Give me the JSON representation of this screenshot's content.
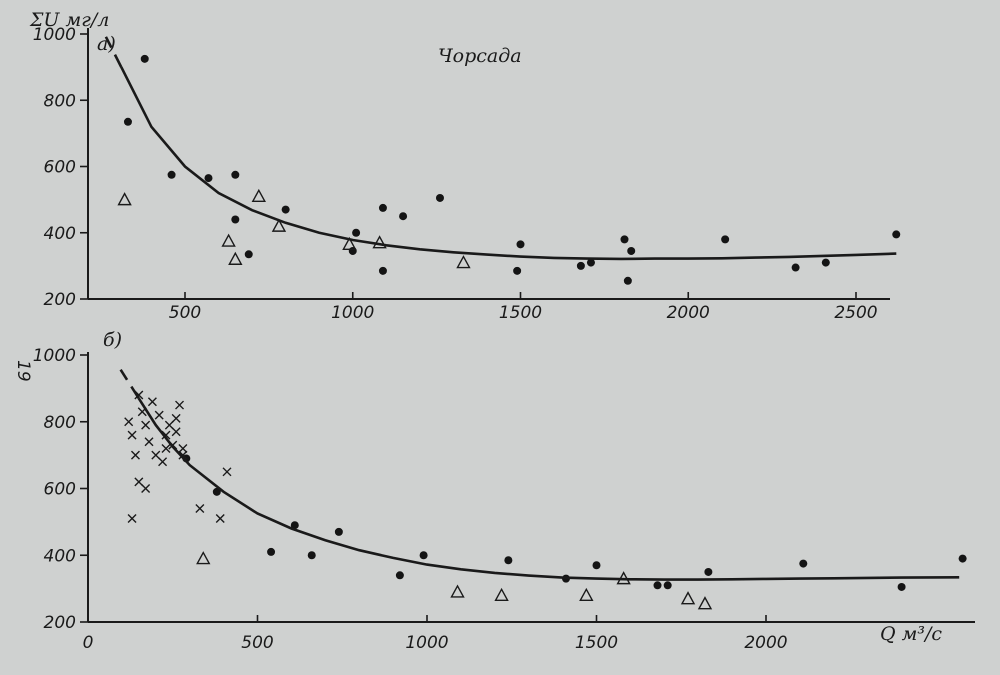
{
  "title": "Чорсада",
  "side_label": "19",
  "chart_data": [
    {
      "type": "scatter",
      "panel_label": "а)",
      "title": "Чорсада",
      "ylabel": "ΣU мг/л",
      "xlabel": "",
      "xlim": [
        0,
        2650
      ],
      "ylim": [
        200,
        1000
      ],
      "x_ticks": [
        "500",
        "1000",
        "1500",
        "2000",
        "2500"
      ],
      "y_ticks": [
        "200",
        "400",
        "600",
        "800",
        "1000"
      ],
      "grid": false,
      "series": [
        {
          "marker": "dot",
          "points": [
            [
              380,
              925
            ],
            [
              330,
              735
            ],
            [
              460,
              575
            ],
            [
              570,
              565
            ],
            [
              650,
              575
            ],
            [
              650,
              440
            ],
            [
              690,
              335
            ],
            [
              800,
              470
            ],
            [
              1000,
              345
            ],
            [
              1010,
              400
            ],
            [
              1090,
              475
            ],
            [
              1090,
              285
            ],
            [
              1150,
              450
            ],
            [
              1260,
              505
            ],
            [
              1490,
              285
            ],
            [
              1500,
              365
            ],
            [
              1680,
              300
            ],
            [
              1710,
              310
            ],
            [
              1810,
              380
            ],
            [
              1820,
              255
            ],
            [
              1830,
              345
            ],
            [
              2110,
              380
            ],
            [
              2320,
              295
            ],
            [
              2410,
              310
            ],
            [
              2620,
              395
            ]
          ]
        },
        {
          "marker": "triangle",
          "points": [
            [
              320,
              500
            ],
            [
              630,
              375
            ],
            [
              650,
              320
            ],
            [
              720,
              510
            ],
            [
              780,
              420
            ],
            [
              990,
              365
            ],
            [
              1080,
              370
            ],
            [
              1330,
              310
            ]
          ]
        },
        {
          "marker": "curve",
          "points": [
            [
              310,
              900
            ],
            [
              400,
              720
            ],
            [
              500,
              600
            ],
            [
              600,
              520
            ],
            [
              700,
              468
            ],
            [
              800,
              430
            ],
            [
              900,
              400
            ],
            [
              1000,
              378
            ],
            [
              1100,
              362
            ],
            [
              1200,
              350
            ],
            [
              1300,
              341
            ],
            [
              1400,
              334
            ],
            [
              1500,
              328
            ],
            [
              1600,
              324
            ],
            [
              1700,
              322
            ],
            [
              1800,
              321
            ],
            [
              1900,
              322
            ],
            [
              2000,
              322
            ],
            [
              2100,
              323
            ],
            [
              2200,
              325
            ],
            [
              2300,
              327
            ],
            [
              2400,
              330
            ],
            [
              2500,
              333
            ],
            [
              2620,
              337
            ]
          ]
        }
      ]
    },
    {
      "type": "scatter",
      "panel_label": "б)",
      "title": "",
      "ylabel": "",
      "xlabel": "Q м³/с",
      "xlim": [
        0,
        2600
      ],
      "ylim": [
        200,
        1000
      ],
      "x_ticks": [
        "0",
        "500",
        "1000",
        "1500",
        "2000"
      ],
      "y_ticks": [
        "200",
        "400",
        "600",
        "800",
        "1000"
      ],
      "grid": false,
      "series": [
        {
          "marker": "dot",
          "points": [
            [
              290,
              690
            ],
            [
              380,
              590
            ],
            [
              540,
              410
            ],
            [
              610,
              490
            ],
            [
              660,
              400
            ],
            [
              740,
              470
            ],
            [
              920,
              340
            ],
            [
              990,
              400
            ],
            [
              1240,
              385
            ],
            [
              1410,
              330
            ],
            [
              1500,
              370
            ],
            [
              1680,
              310
            ],
            [
              1710,
              310
            ],
            [
              1830,
              350
            ],
            [
              2110,
              375
            ],
            [
              2400,
              305
            ],
            [
              2580,
              390
            ]
          ]
        },
        {
          "marker": "triangle",
          "points": [
            [
              340,
              390
            ],
            [
              1090,
              290
            ],
            [
              1220,
              280
            ],
            [
              1470,
              280
            ],
            [
              1580,
              330
            ],
            [
              1770,
              270
            ],
            [
              1820,
              255
            ]
          ]
        },
        {
          "marker": "cross",
          "points": [
            [
              120,
              800
            ],
            [
              130,
              760
            ],
            [
              140,
              700
            ],
            [
              150,
              880
            ],
            [
              160,
              830
            ],
            [
              170,
              790
            ],
            [
              180,
              740
            ],
            [
              190,
              860
            ],
            [
              200,
              700
            ],
            [
              210,
              820
            ],
            [
              220,
              680
            ],
            [
              230,
              760
            ],
            [
              240,
              790
            ],
            [
              250,
              730
            ],
            [
              260,
              810
            ],
            [
              270,
              850
            ],
            [
              280,
              700
            ],
            [
              130,
              510
            ],
            [
              150,
              620
            ],
            [
              170,
              600
            ],
            [
              330,
              540
            ],
            [
              390,
              510
            ],
            [
              410,
              650
            ],
            [
              230,
              720
            ],
            [
              260,
              770
            ],
            [
              280,
              720
            ]
          ]
        },
        {
          "marker": "curve",
          "points": [
            [
              150,
              870
            ],
            [
              200,
              790
            ],
            [
              250,
              725
            ],
            [
              300,
              670
            ],
            [
              400,
              590
            ],
            [
              500,
              525
            ],
            [
              600,
              480
            ],
            [
              700,
              445
            ],
            [
              800,
              415
            ],
            [
              900,
              392
            ],
            [
              1000,
              372
            ],
            [
              1100,
              358
            ],
            [
              1200,
              347
            ],
            [
              1300,
              339
            ],
            [
              1400,
              333
            ],
            [
              1500,
              330
            ],
            [
              1600,
              328
            ],
            [
              1700,
              327
            ],
            [
              1800,
              327
            ],
            [
              1900,
              328
            ],
            [
              2000,
              329
            ],
            [
              2100,
              330
            ],
            [
              2200,
              331
            ],
            [
              2300,
              332
            ],
            [
              2400,
              333
            ],
            [
              2570,
              334
            ]
          ]
        }
      ]
    }
  ]
}
